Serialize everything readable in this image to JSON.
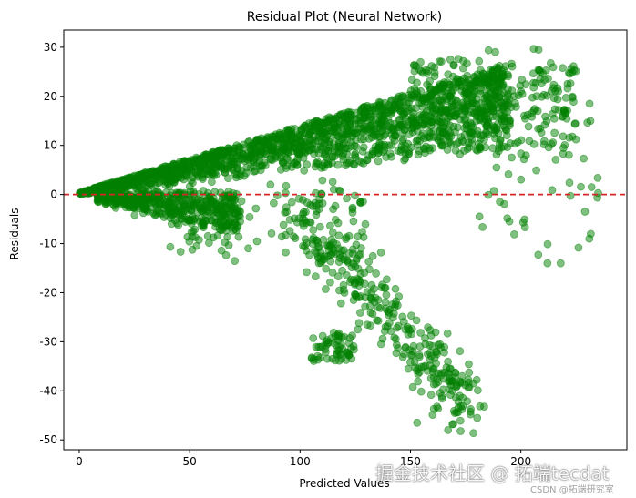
{
  "chart_data": {
    "type": "scatter",
    "title": "Residual Plot (Neural Network)",
    "xlabel": "Predicted Values",
    "ylabel": "Residuals",
    "xlim": [
      -7,
      248
    ],
    "ylim": [
      -52,
      33.5
    ],
    "xticks": [
      0,
      50,
      100,
      150,
      200
    ],
    "yticks": [
      -50,
      -40,
      -30,
      -20,
      -10,
      0,
      10,
      20,
      30
    ],
    "grid": false,
    "reference_line": {
      "y": 0,
      "color": "#d62728",
      "style": "dashed"
    },
    "marker": {
      "color": "#008000",
      "alpha": 0.5
    },
    "point_groups": [
      {
        "name": "upper band",
        "x_range": [
          0,
          220
        ],
        "residual_max": [
          0,
          28
        ],
        "count": 1500
      },
      {
        "name": "near-zero negative band",
        "x_range": [
          10,
          75
        ],
        "residual_min": [
          -10,
          -2
        ],
        "count": 400
      },
      {
        "name": "descending tail",
        "x_range": [
          100,
          180
        ],
        "y_range": [
          -48,
          -5
        ],
        "count": 300
      },
      {
        "name": "sparse high-x",
        "x_range": [
          180,
          236
        ],
        "y_range": [
          -14,
          30
        ],
        "count": 60
      }
    ],
    "colors": {
      "points": "#008000",
      "zero_line": "#d62728",
      "axes": "#000000"
    }
  },
  "watermark": {
    "main": "掘金技术社区 @ 拓端tecdat",
    "sub": "CSDN @拓端研究室"
  }
}
